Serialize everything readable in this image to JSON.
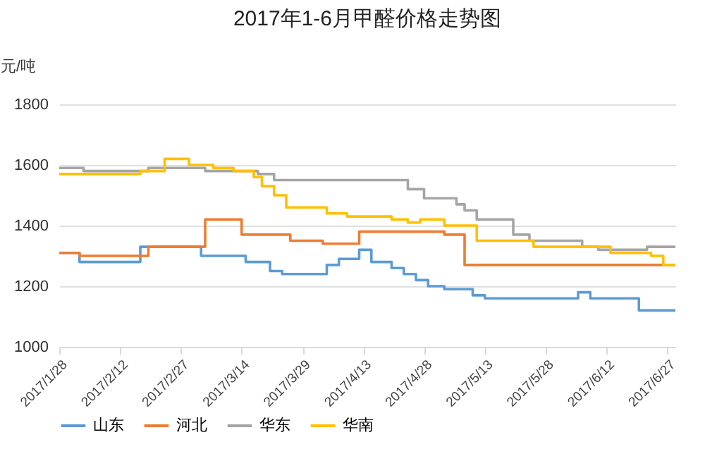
{
  "chart_data": {
    "type": "step",
    "title": "2017年1-6月甲醛价格走势图",
    "ylabel": "元/吨",
    "xlim": [
      "2017-01-28",
      "2017-06-29"
    ],
    "xticks": [
      {
        "value": "2017-01-28",
        "label": "2017/1/28"
      },
      {
        "value": "2017-02-12",
        "label": "2017/2/12"
      },
      {
        "value": "2017-02-27",
        "label": "2017/2/27"
      },
      {
        "value": "2017-03-14",
        "label": "2017/3/14"
      },
      {
        "value": "2017-03-29",
        "label": "2017/3/29"
      },
      {
        "value": "2017-04-13",
        "label": "2017/4/13"
      },
      {
        "value": "2017-04-28",
        "label": "2017/4/28"
      },
      {
        "value": "2017-05-13",
        "label": "2017/5/13"
      },
      {
        "value": "2017-05-28",
        "label": "2017/5/28"
      },
      {
        "value": "2017-06-12",
        "label": "2017/6/12"
      },
      {
        "value": "2017-06-27",
        "label": "2017/6/27"
      }
    ],
    "ylim": [
      1000,
      1800
    ],
    "yticks": [
      1000,
      1200,
      1400,
      1600,
      1800
    ],
    "grid": "y",
    "legend": "bottom",
    "line_style": "solid",
    "series": [
      {
        "name": "山东",
        "color": "#5b9bd5",
        "x": [
          "2017-01-28",
          "2017-02-02",
          "2017-02-17",
          "2017-03-04",
          "2017-03-15",
          "2017-03-21",
          "2017-03-24",
          "2017-04-04",
          "2017-04-07",
          "2017-04-12",
          "2017-04-15",
          "2017-04-20",
          "2017-04-23",
          "2017-04-26",
          "2017-04-29",
          "2017-05-03",
          "2017-05-10",
          "2017-05-13",
          "2017-06-05",
          "2017-06-08",
          "2017-06-20",
          "2017-06-29"
        ],
        "values": [
          1310,
          1280,
          1330,
          1300,
          1280,
          1250,
          1240,
          1270,
          1290,
          1320,
          1280,
          1260,
          1240,
          1220,
          1200,
          1190,
          1170,
          1160,
          1180,
          1160,
          1120,
          1120
        ]
      },
      {
        "name": "河北",
        "color": "#ed7d31",
        "x": [
          "2017-01-28",
          "2017-02-02",
          "2017-02-19",
          "2017-03-05",
          "2017-03-14",
          "2017-03-26",
          "2017-04-03",
          "2017-04-12",
          "2017-05-03",
          "2017-05-08",
          "2017-06-29"
        ],
        "values": [
          1310,
          1300,
          1330,
          1420,
          1370,
          1350,
          1340,
          1380,
          1370,
          1270,
          1270
        ]
      },
      {
        "name": "华东",
        "color": "#a5a5a5",
        "x": [
          "2017-01-28",
          "2017-02-03",
          "2017-02-19",
          "2017-03-05",
          "2017-03-18",
          "2017-03-22",
          "2017-04-24",
          "2017-04-28",
          "2017-05-06",
          "2017-05-08",
          "2017-05-11",
          "2017-05-20",
          "2017-05-24",
          "2017-06-06",
          "2017-06-10",
          "2017-06-22",
          "2017-06-29"
        ],
        "values": [
          1590,
          1580,
          1590,
          1580,
          1570,
          1550,
          1520,
          1490,
          1470,
          1450,
          1420,
          1370,
          1350,
          1330,
          1320,
          1330,
          1330
        ]
      },
      {
        "name": "华南",
        "color": "#ffc000",
        "x": [
          "2017-01-28",
          "2017-02-17",
          "2017-02-23",
          "2017-03-01",
          "2017-03-07",
          "2017-03-12",
          "2017-03-17",
          "2017-03-19",
          "2017-03-22",
          "2017-03-25",
          "2017-04-04",
          "2017-04-09",
          "2017-04-20",
          "2017-04-24",
          "2017-04-27",
          "2017-05-03",
          "2017-05-11",
          "2017-05-25",
          "2017-06-13",
          "2017-06-23",
          "2017-06-26",
          "2017-06-29"
        ],
        "values": [
          1570,
          1580,
          1620,
          1600,
          1590,
          1580,
          1560,
          1530,
          1500,
          1460,
          1440,
          1430,
          1420,
          1410,
          1420,
          1400,
          1350,
          1330,
          1310,
          1300,
          1270,
          1270
        ]
      }
    ]
  }
}
